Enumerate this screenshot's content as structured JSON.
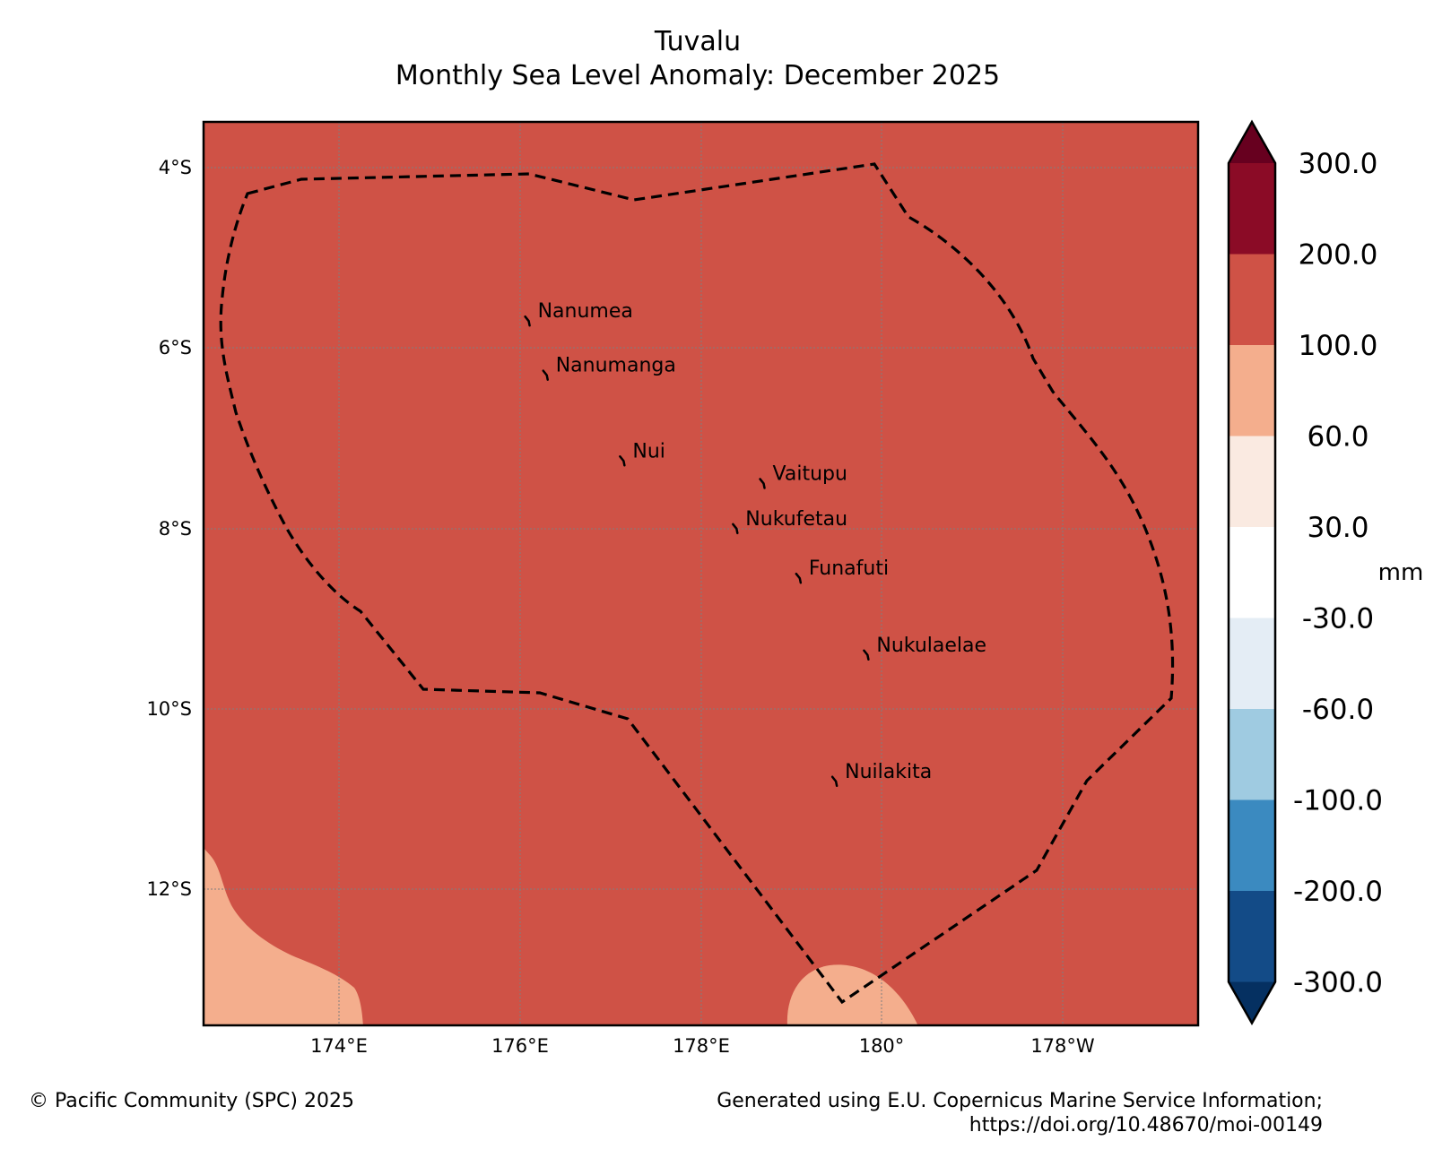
{
  "title": "Tuvalu",
  "subtitle": "Monthly Sea Level Anomaly: December 2025",
  "colors": {
    "anomaly_fill": "#cf5246",
    "light_fill": "#f4ae8d",
    "boundary": "#000000",
    "grid": "#7f7f7f"
  },
  "lat_labels": [
    "4°S",
    "6°S",
    "8°S",
    "10°S",
    "12°S"
  ],
  "lon_labels": [
    "174°E",
    "176°E",
    "178°E",
    "180°",
    "178°W"
  ],
  "islands": [
    {
      "name": "Nanumea",
      "lon": 176.1,
      "lat": -5.7
    },
    {
      "name": "Nanumanga",
      "lon": 176.3,
      "lat": -6.3
    },
    {
      "name": "Nui",
      "lon": 177.15,
      "lat": -7.25
    },
    {
      "name": "Vaitupu",
      "lon": 178.7,
      "lat": -7.5
    },
    {
      "name": "Nukufetau",
      "lon": 178.4,
      "lat": -8.0
    },
    {
      "name": "Funafuti",
      "lon": 179.1,
      "lat": -8.55
    },
    {
      "name": "Nukulaelae",
      "lon": 179.85,
      "lat": -9.4
    },
    {
      "name": "Nuilakita",
      "lon": 179.5,
      "lat": -10.8
    }
  ],
  "colorbar": {
    "unit": "mm",
    "levels": [
      "300.0",
      "200.0",
      "100.0",
      "60.0",
      "30.0",
      "-30.0",
      "-60.0",
      "-100.0",
      "-200.0",
      "-300.0"
    ],
    "colors": [
      "#67001f",
      "#8b0b26",
      "#cf5246",
      "#f4ae8d",
      "#faeae1",
      "#ffffff",
      "#e4edf5",
      "#9fcbe1",
      "#3b8ac0",
      "#134b87",
      "#053061"
    ]
  },
  "footer": {
    "copyright": "© Pacific Community (SPC) 2025",
    "credit_line1": "Generated using E.U. Copernicus Marine Service Information;",
    "credit_line2": "https://doi.org/10.48670/moi-00149"
  }
}
